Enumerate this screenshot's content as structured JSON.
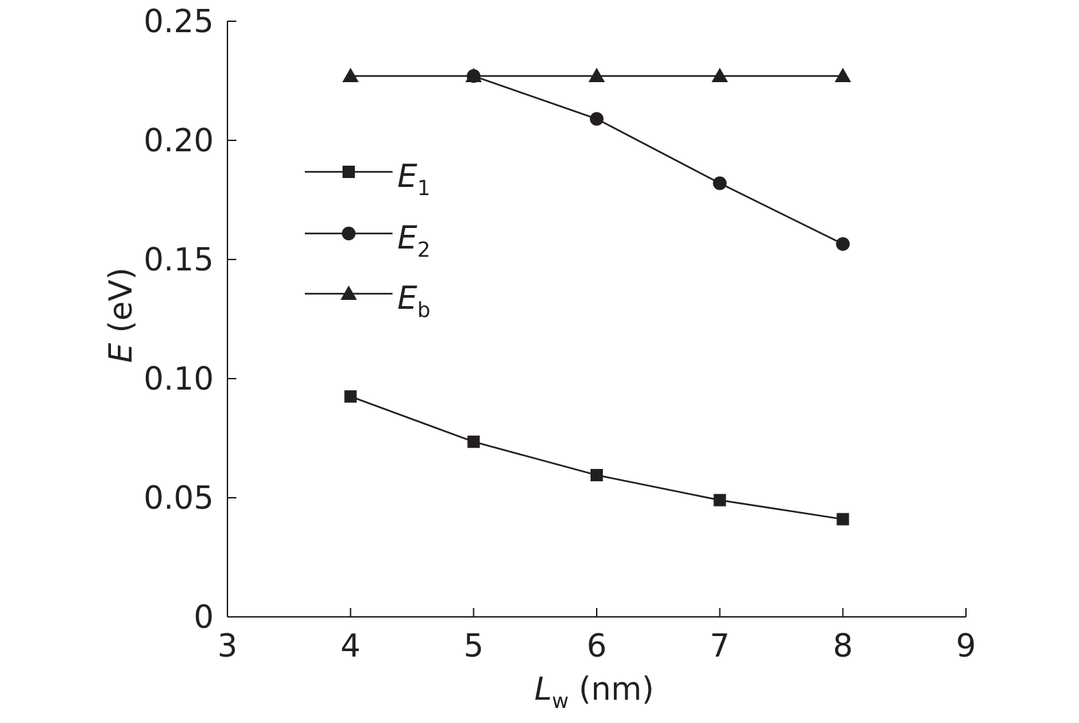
{
  "chart_data": {
    "type": "line",
    "x": [
      4,
      5,
      6,
      7,
      8
    ],
    "series": [
      {
        "name": "E1",
        "label_main": "E",
        "label_sub": "1",
        "marker": "square",
        "values": [
          0.0925,
          0.0735,
          0.0595,
          0.049,
          0.041
        ]
      },
      {
        "name": "E2",
        "label_main": "E",
        "label_sub": "2",
        "marker": "circle",
        "values": [
          null,
          0.227,
          0.209,
          0.182,
          0.1565
        ]
      },
      {
        "name": "Eb",
        "label_main": "E",
        "label_sub": "b",
        "marker": "triangle",
        "values": [
          0.227,
          0.227,
          0.227,
          0.227,
          0.227
        ]
      }
    ],
    "xaxis": {
      "main": "L",
      "sub": "w",
      "unit": " (nm)"
    },
    "yaxis": {
      "main": "E",
      "unit": " (eV)"
    },
    "xlim": [
      3,
      9
    ],
    "ylim": [
      0,
      0.25
    ],
    "xticks": [
      3,
      4,
      5,
      6,
      7,
      8,
      9
    ],
    "xtick_labels": [
      "3",
      "4",
      "5",
      "6",
      "7",
      "8",
      "9"
    ],
    "yticks": [
      0,
      0.05,
      0.1,
      0.15,
      0.2,
      0.25
    ],
    "ytick_labels": [
      "0",
      "0.05",
      "0.10",
      "0.15",
      "0.20",
      "0.25"
    ],
    "grid": false,
    "legend_position": "upper-left",
    "color": "#231f20"
  }
}
